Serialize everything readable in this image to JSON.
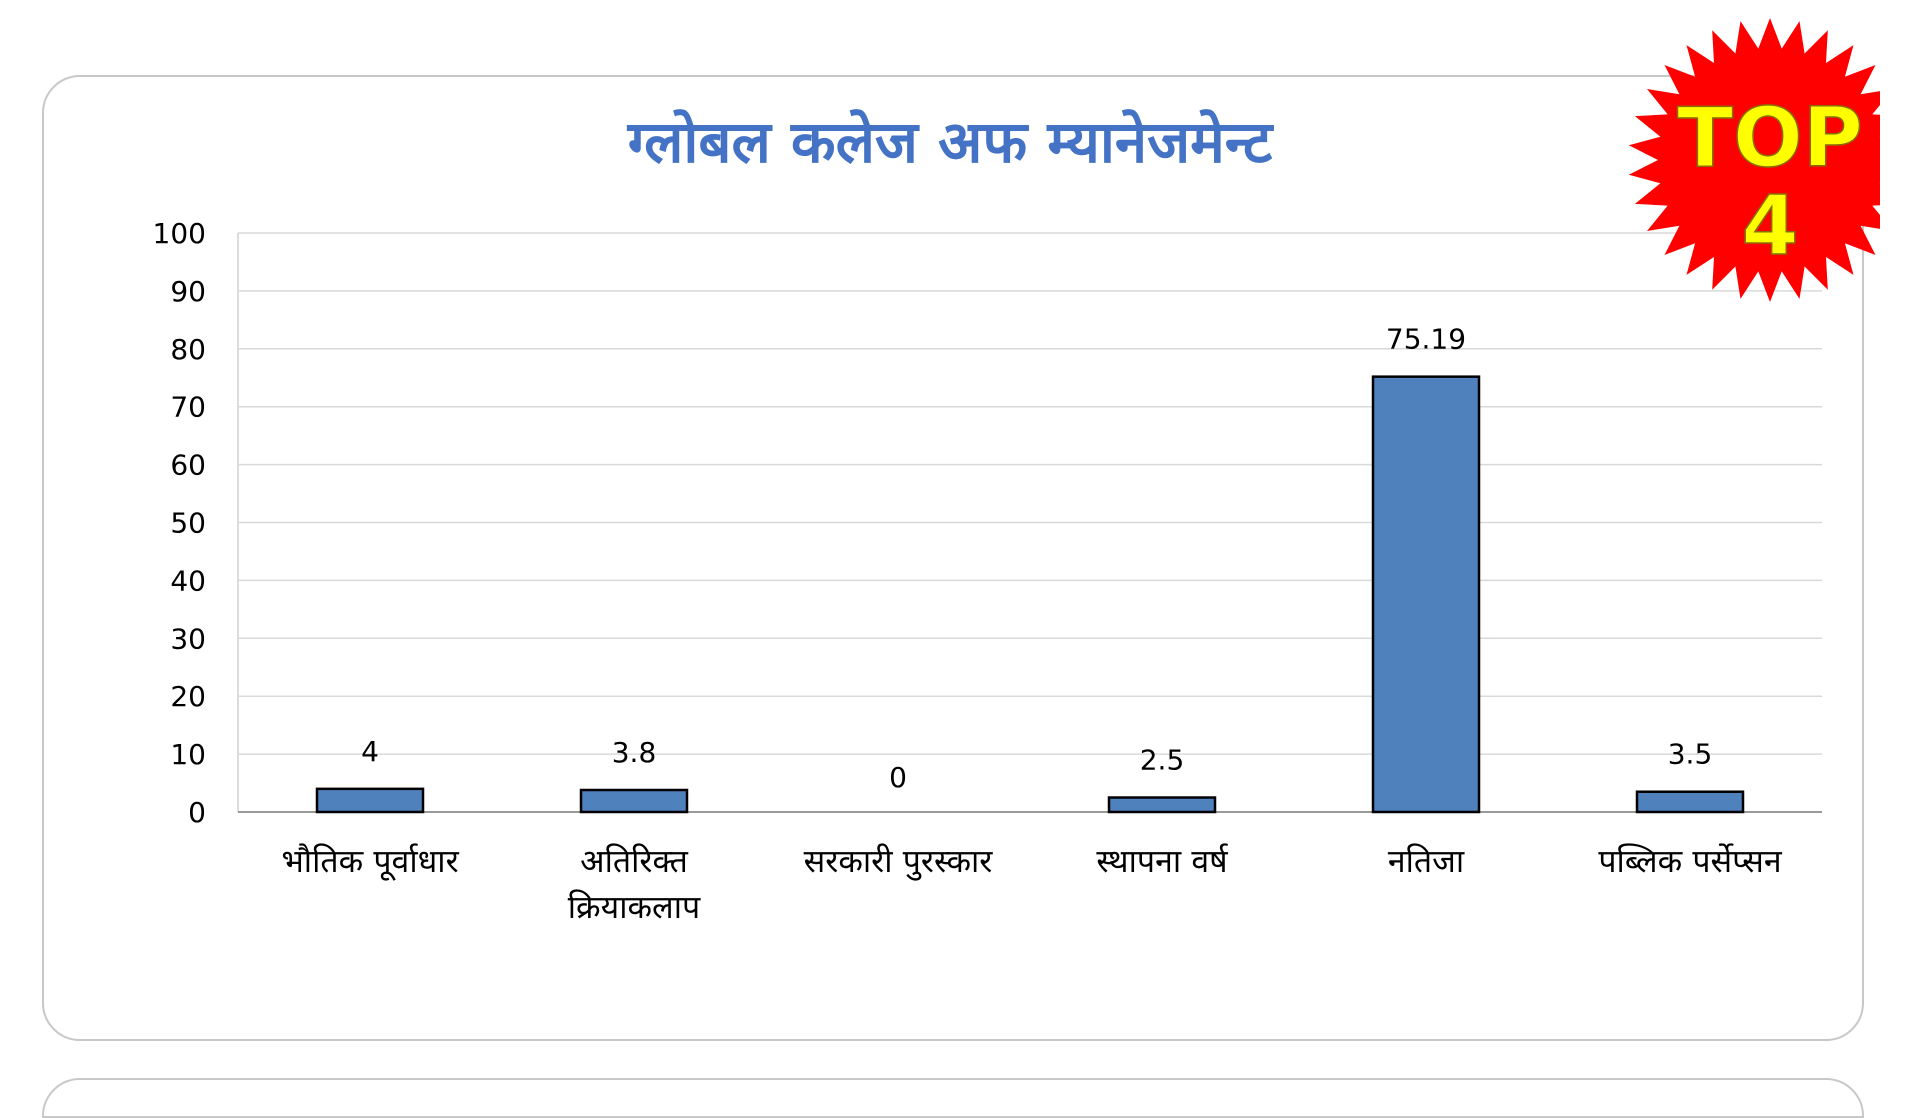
{
  "badge": {
    "line1": "TOP",
    "line2": "4",
    "fill_color": "#ff0000",
    "text_color": "#ffff00"
  },
  "chart_data": {
    "type": "bar",
    "title": "ग्लोबल कलेज अफ म्यानेजमेन्ट",
    "categories": [
      [
        "भौतिक पूर्वाधार"
      ],
      [
        "अतिरिक्त",
        "क्रियाकलाप"
      ],
      [
        "सरकारी पुरस्कार"
      ],
      [
        "स्थापना वर्ष"
      ],
      [
        "नतिजा"
      ],
      [
        "पब्लिक पर्सेप्सन"
      ]
    ],
    "values": [
      4,
      3.8,
      0,
      2.5,
      75.19,
      3.5
    ],
    "value_labels": [
      "4",
      "3.8",
      "0",
      "2.5",
      "75.19",
      "3.5"
    ],
    "y_ticks": [
      0,
      10,
      20,
      30,
      40,
      50,
      60,
      70,
      80,
      90,
      100
    ],
    "ylim": [
      0,
      100
    ],
    "grid": true,
    "legend": "none",
    "bar_color": "#4f81bd",
    "title_color": "#4472c4"
  }
}
